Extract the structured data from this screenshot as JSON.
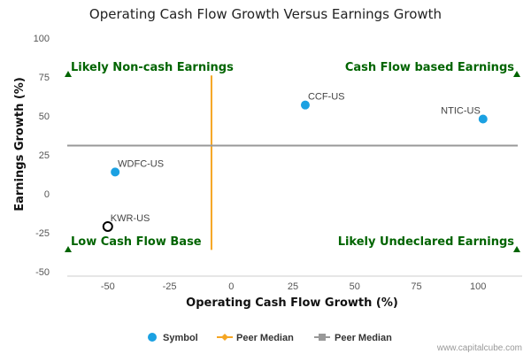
{
  "chart_data": {
    "type": "scatter",
    "title": "Operating Cash Flow Growth Versus Earnings Growth",
    "xlabel": "Operating Cash Flow Growth (%)",
    "ylabel": "Earnings Growth (%)",
    "xlim": [
      -70,
      120
    ],
    "ylim": [
      -50,
      100
    ],
    "xticks": [
      -50,
      -25,
      0,
      25,
      50,
      75,
      100
    ],
    "yticks": [
      100,
      75,
      50,
      25,
      0,
      -25,
      -50
    ],
    "grid": false,
    "points": [
      {
        "label": "CCF-US",
        "x": 30,
        "y": 57,
        "style": "filled"
      },
      {
        "label": "NTIC-US",
        "x": 102,
        "y": 48,
        "style": "filled"
      },
      {
        "label": "WDFC-US",
        "x": -47,
        "y": 14,
        "style": "filled"
      },
      {
        "label": "KWR-US",
        "x": -50,
        "y": -21,
        "style": "hollow"
      }
    ],
    "peer_median_x": -8,
    "peer_median_x_range": [
      -36,
      76
    ],
    "peer_median_y": 31,
    "quadrants": {
      "top_left": "Likely Non-cash Earnings",
      "top_right": "Cash Flow based Earnings",
      "bottom_left": "Low Cash Flow Base",
      "bottom_right": "Likely Undeclared Earnings"
    },
    "legend": [
      "Symbol",
      "Peer Median",
      "Peer Median"
    ],
    "legend_position": "bottom-center",
    "colors": {
      "point": "#1ba1e2",
      "point_hollow_stroke": "#000000",
      "peer_median_x": "#f5a623",
      "peer_median_y": "#999999",
      "quadrant_text": "#006400",
      "marker": "#006400"
    }
  },
  "footer": "www.capitalcube.com"
}
